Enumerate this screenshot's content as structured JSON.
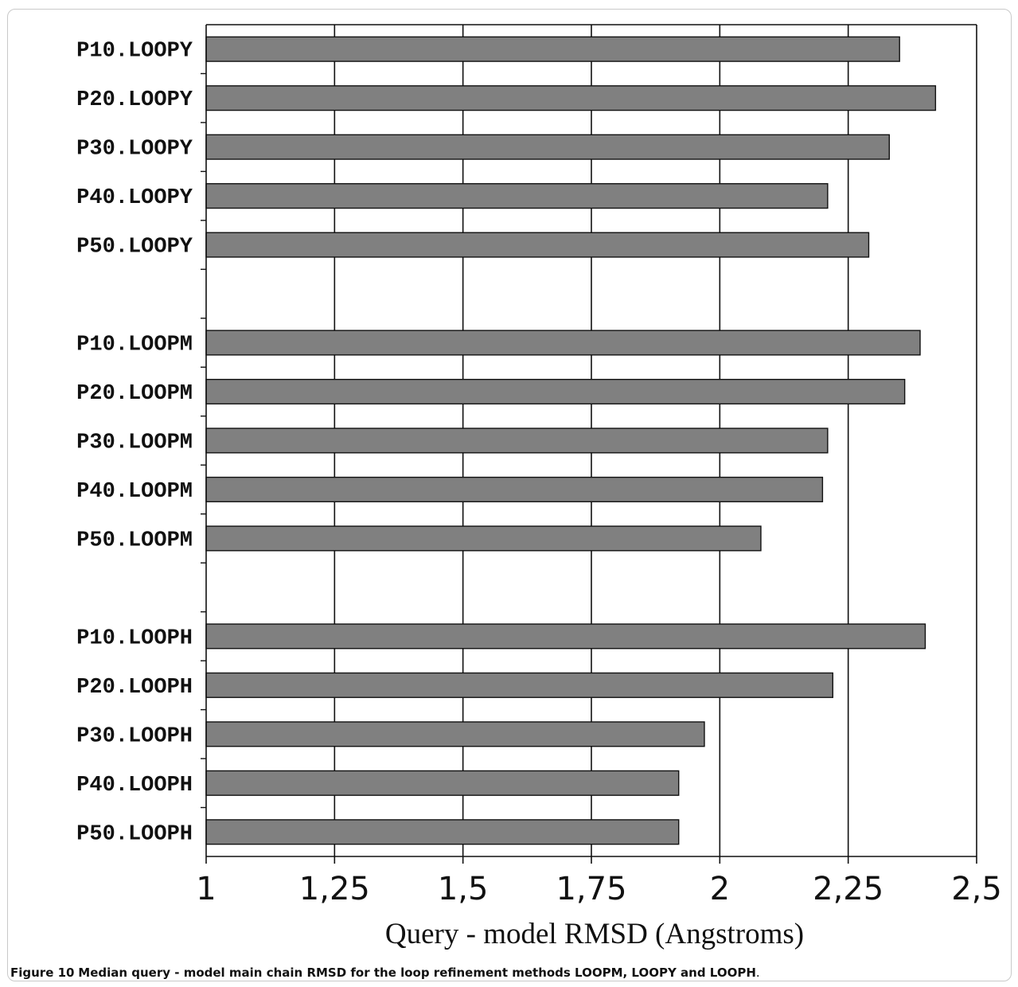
{
  "caption": {
    "label": "Figure 10",
    "text": "Median query - model main chain RMSD for the loop refinement methods LOOPM, LOOPY and LOOPH",
    "end": "."
  },
  "chart_data": {
    "type": "bar",
    "orientation": "horizontal",
    "categories": [
      "P10.LOOPY",
      "P20.LOOPY",
      "P30.LOOPY",
      "P40.LOOPY",
      "P50.LOOPY",
      "",
      "P10.LOOPM",
      "P20.LOOPM",
      "P30.LOOPM",
      "P40.LOOPM",
      "P50.LOOPM",
      "",
      "P10.LOOPH",
      "P20.LOOPH",
      "P30.LOOPH",
      "P40.LOOPH",
      "P50.LOOPH"
    ],
    "values": [
      2.35,
      2.42,
      2.33,
      2.21,
      2.29,
      null,
      2.39,
      2.36,
      2.21,
      2.2,
      2.08,
      null,
      2.4,
      2.22,
      1.97,
      1.92,
      1.92
    ],
    "xlim": [
      1,
      2.5
    ],
    "xticks": [
      1,
      1.25,
      1.5,
      1.75,
      2,
      2.25,
      2.5
    ],
    "xtick_labels": [
      "1",
      "1,25",
      "1,5",
      "1,75",
      "2",
      "2,25",
      "2,5"
    ],
    "xlabel": "Query - model RMSD (Angstroms)",
    "ylabel": "",
    "title": "",
    "grid": "vertical",
    "bar_color": "#808080",
    "bar_edge_color": "#111111"
  }
}
